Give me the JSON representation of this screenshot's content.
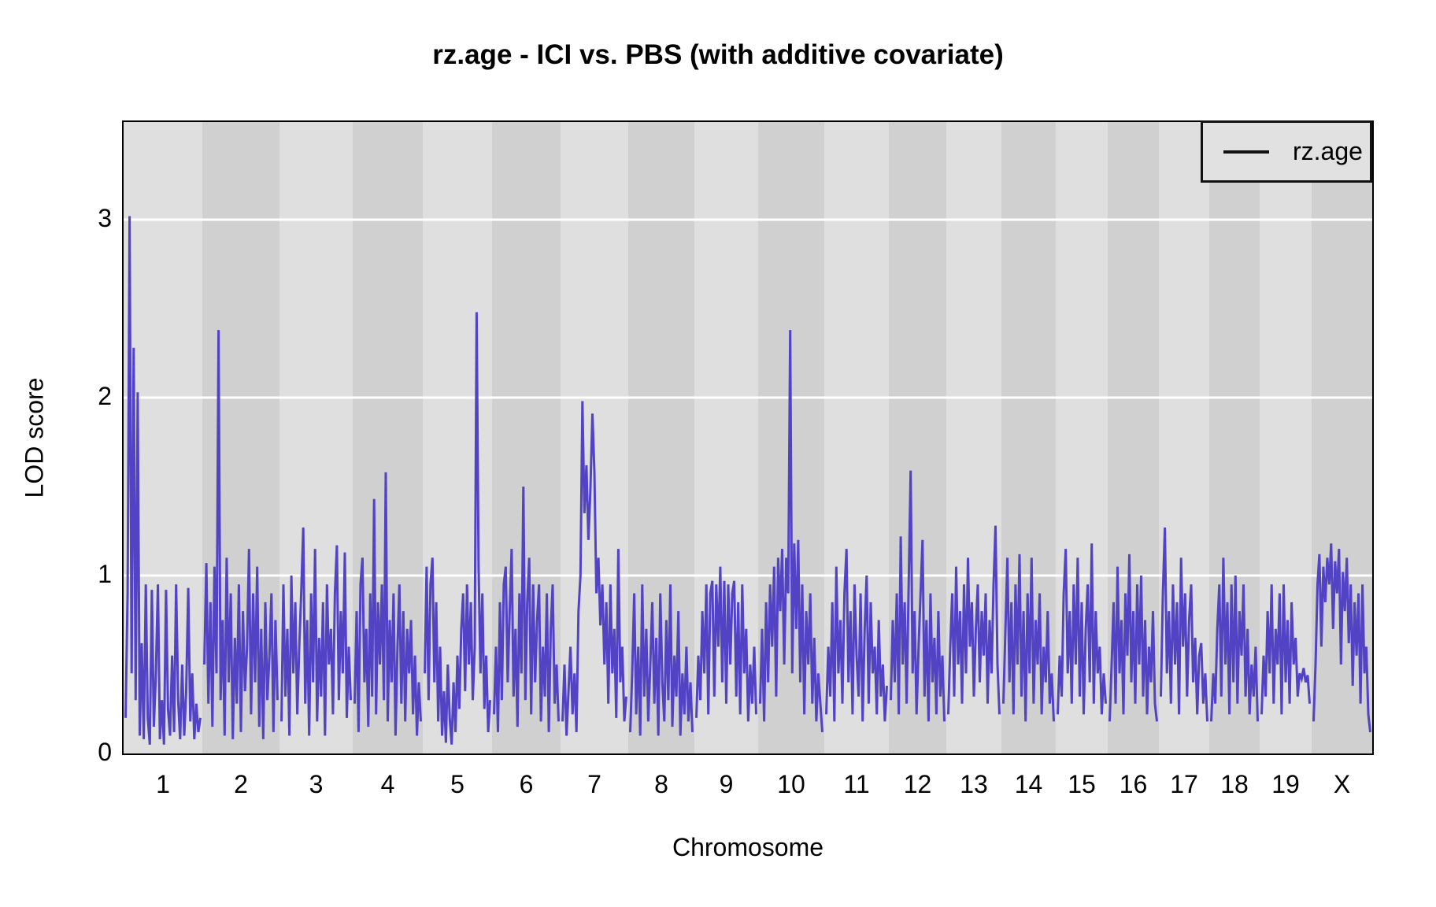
{
  "title": "rz.age - ICI vs. PBS (with additive covariate)",
  "y_axis": {
    "label": "LOD score",
    "ticks": [
      "0",
      "1",
      "2",
      "3"
    ]
  },
  "x_axis": {
    "label": "Chromosome"
  },
  "legend": {
    "label": "rz.age"
  },
  "colors": {
    "line": "#5242c4",
    "band_light": "#dfdfdf",
    "band_dark": "#d0d0d0",
    "gridline": "#ffffff",
    "border": "#000000",
    "legend_bg": "#e1e1e1"
  },
  "chart_data": {
    "type": "line",
    "title": "rz.age - ICI vs. PBS (with additive covariate)",
    "xlabel": "Chromosome",
    "ylabel": "LOD score",
    "ylim": [
      0,
      3.55
    ],
    "yticks": [
      0,
      1,
      2,
      3
    ],
    "grid": "horizontal-white-on-gray-bands",
    "legend_position": "top-right-inside",
    "series_name": "rz.age",
    "chromosomes": [
      {
        "name": "1",
        "rel_length": 100,
        "lod": [
          0.2,
          0.9,
          3.02,
          0.45,
          2.28,
          0.3,
          2.03,
          0.1,
          0.62,
          0.08,
          0.95,
          0.2,
          0.05,
          0.92,
          0.15,
          0.45,
          0.95,
          0.08,
          0.3,
          0.05,
          0.92,
          0.25,
          0.1,
          0.55,
          0.12,
          0.95,
          0.3,
          0.08,
          0.5,
          0.1,
          0.35,
          0.93,
          0.18,
          0.45,
          0.08,
          0.28,
          0.12,
          0.2
        ]
      },
      {
        "name": "2",
        "rel_length": 98,
        "lod": [
          0.5,
          1.07,
          0.28,
          0.85,
          0.15,
          1.05,
          0.45,
          2.38,
          0.3,
          0.75,
          0.1,
          1.1,
          0.4,
          0.9,
          0.08,
          0.65,
          0.28,
          0.95,
          0.12,
          0.8,
          0.35,
          0.6,
          1.15,
          0.22,
          0.9,
          0.4,
          1.05,
          0.15,
          0.7,
          0.08,
          0.85,
          0.3,
          0.55,
          0.9,
          0.12,
          0.75,
          0.3
        ]
      },
      {
        "name": "3",
        "rel_length": 93,
        "lod": [
          0.18,
          0.95,
          0.32,
          0.7,
          0.1,
          1.0,
          0.45,
          0.85,
          0.22,
          0.6,
          0.9,
          1.27,
          0.28,
          0.75,
          0.1,
          0.9,
          0.4,
          1.15,
          0.18,
          0.65,
          0.32,
          0.85,
          0.1,
          0.95,
          0.5,
          0.7,
          0.22,
          0.9,
          1.17,
          0.3,
          0.8,
          0.45,
          1.13,
          0.2,
          0.6,
          0.3
        ]
      },
      {
        "name": "4",
        "rel_length": 89,
        "lod": [
          0.28,
          0.8,
          0.12,
          0.95,
          1.1,
          0.4,
          0.7,
          0.15,
          0.9,
          0.32,
          1.43,
          0.22,
          0.85,
          0.5,
          0.95,
          0.3,
          1.58,
          0.18,
          0.75,
          0.4,
          0.9,
          0.1,
          0.6,
          0.95,
          0.28,
          0.8,
          0.18,
          0.7,
          0.45,
          0.75,
          0.22,
          0.55,
          0.1,
          0.4,
          0.18
        ]
      },
      {
        "name": "5",
        "rel_length": 88,
        "lod": [
          0.45,
          1.05,
          0.3,
          0.95,
          1.1,
          0.4,
          0.85,
          0.18,
          0.6,
          0.1,
          0.35,
          0.06,
          0.5,
          0.2,
          0.05,
          0.4,
          0.12,
          0.55,
          0.25,
          0.7,
          0.9,
          0.35,
          0.95,
          0.5,
          0.85,
          0.3,
          0.6,
          2.48,
          1.05,
          0.45,
          0.9,
          0.25,
          0.55,
          0.12,
          0.3
        ]
      },
      {
        "name": "6",
        "rel_length": 87,
        "lod": [
          0.22,
          0.6,
          0.12,
          0.85,
          0.3,
          0.95,
          1.05,
          0.4,
          0.8,
          1.15,
          0.32,
          0.7,
          0.15,
          0.9,
          0.45,
          1.5,
          0.3,
          0.85,
          1.1,
          0.22,
          0.95,
          0.4,
          0.75,
          0.95,
          0.18,
          0.6,
          0.32,
          0.9,
          0.12,
          0.7,
          0.95,
          0.28,
          0.5,
          0.18
        ]
      },
      {
        "name": "7",
        "rel_length": 86,
        "lod": [
          0.18,
          0.5,
          0.1,
          0.35,
          0.6,
          0.22,
          0.45,
          0.12,
          0.8,
          1.0,
          1.98,
          1.35,
          1.62,
          1.2,
          1.48,
          1.91,
          1.58,
          0.9,
          1.1,
          0.72,
          0.95,
          0.5,
          0.85,
          0.28,
          0.95,
          0.45,
          0.7,
          0.2,
          1.15,
          0.4,
          0.6,
          0.18,
          0.32
        ]
      },
      {
        "name": "8",
        "rel_length": 84,
        "lod": [
          0.12,
          0.45,
          0.9,
          0.22,
          0.6,
          0.1,
          0.95,
          0.32,
          0.7,
          0.18,
          0.5,
          0.85,
          0.28,
          0.65,
          0.1,
          0.9,
          0.4,
          0.18,
          0.75,
          0.3,
          0.95,
          0.15,
          0.55,
          0.32,
          0.8,
          0.1,
          0.45,
          0.22,
          0.6,
          0.18,
          0.4,
          0.12
        ]
      },
      {
        "name": "9",
        "rel_length": 81,
        "lod": [
          0.2,
          0.55,
          0.3,
          0.8,
          0.45,
          0.95,
          0.22,
          0.9,
          0.97,
          0.32,
          0.95,
          0.6,
          1.05,
          0.4,
          0.97,
          0.28,
          0.95,
          0.5,
          0.9,
          0.97,
          0.32,
          0.85,
          0.22,
          0.95,
          0.45,
          0.7,
          0.18,
          0.5,
          0.28,
          0.6,
          0.22
        ]
      },
      {
        "name": "10",
        "rel_length": 84,
        "lod": [
          0.28,
          0.7,
          0.18,
          0.85,
          0.4,
          0.95,
          0.6,
          1.05,
          0.32,
          1.1,
          0.8,
          1.15,
          0.5,
          1.1,
          0.9,
          2.38,
          0.45,
          1.18,
          0.7,
          1.2,
          0.4,
          0.95,
          0.22,
          0.8,
          0.5,
          0.9,
          0.28,
          0.65,
          0.18,
          0.45,
          0.28,
          0.12
        ]
      },
      {
        "name": "11",
        "rel_length": 82,
        "lod": [
          0.22,
          0.6,
          0.32,
          0.85,
          0.18,
          1.05,
          0.45,
          0.75,
          0.28,
          0.9,
          1.15,
          0.4,
          0.8,
          0.22,
          0.95,
          0.55,
          0.32,
          0.9,
          0.18,
          0.7,
          1.0,
          0.28,
          0.85,
          0.45,
          0.6,
          0.22,
          0.75,
          0.32,
          0.5,
          0.18,
          0.38
        ]
      },
      {
        "name": "12",
        "rel_length": 73,
        "lod": [
          0.3,
          0.75,
          0.4,
          0.9,
          0.22,
          1.22,
          0.5,
          0.85,
          0.28,
          0.95,
          1.59,
          0.45,
          0.8,
          0.22,
          0.6,
          0.9,
          1.2,
          0.32,
          0.75,
          0.18,
          0.9,
          0.4,
          0.65,
          0.22,
          0.8,
          0.32,
          0.55,
          0.18
        ]
      },
      {
        "name": "13",
        "rel_length": 70,
        "lod": [
          0.22,
          0.6,
          0.9,
          0.32,
          1.05,
          0.5,
          0.8,
          0.28,
          0.95,
          0.45,
          1.1,
          0.6,
          0.85,
          0.32,
          0.7,
          0.95,
          0.4,
          0.8,
          0.55,
          0.9,
          0.28,
          0.75,
          0.45,
          0.95,
          1.28,
          0.5,
          0.22
        ]
      },
      {
        "name": "14",
        "rel_length": 69,
        "lod": [
          0.28,
          0.7,
          1.1,
          0.4,
          0.85,
          0.22,
          0.95,
          0.5,
          1.12,
          0.32,
          0.8,
          0.18,
          0.9,
          0.45,
          1.1,
          0.28,
          0.75,
          0.5,
          0.9,
          0.22,
          0.6,
          0.4,
          0.8,
          0.28,
          0.45,
          0.18
        ]
      },
      {
        "name": "15",
        "rel_length": 66,
        "lod": [
          0.22,
          0.55,
          0.32,
          0.9,
          1.15,
          0.45,
          0.8,
          0.28,
          0.95,
          0.5,
          1.1,
          0.32,
          0.85,
          0.22,
          0.7,
          0.95,
          0.4,
          1.18,
          0.28,
          0.8,
          0.45,
          0.6,
          0.22,
          0.45,
          0.28
        ]
      },
      {
        "name": "16",
        "rel_length": 65,
        "lod": [
          0.18,
          0.5,
          0.85,
          0.28,
          1.05,
          0.45,
          0.75,
          0.22,
          0.9,
          0.55,
          1.12,
          0.4,
          0.8,
          0.28,
          0.95,
          0.5,
          1.0,
          0.32,
          0.75,
          0.22,
          0.6,
          0.4,
          0.8,
          0.28,
          0.18
        ]
      },
      {
        "name": "17",
        "rel_length": 64,
        "lod": [
          0.32,
          0.9,
          1.27,
          0.45,
          0.8,
          0.28,
          0.95,
          0.5,
          0.85,
          0.22,
          1.1,
          0.6,
          0.9,
          0.32,
          0.75,
          0.95,
          0.4,
          0.65,
          0.22,
          0.55,
          0.62,
          0.28,
          0.45,
          0.18
        ]
      },
      {
        "name": "18",
        "rel_length": 64,
        "lod": [
          0.18,
          0.45,
          0.28,
          0.7,
          0.95,
          0.32,
          1.1,
          0.5,
          0.85,
          0.22,
          0.95,
          0.4,
          1.0,
          0.28,
          0.8,
          0.55,
          0.95,
          0.32,
          0.7,
          0.22,
          0.5,
          0.32,
          0.6,
          0.18
        ]
      },
      {
        "name": "19",
        "rel_length": 66,
        "lod": [
          0.22,
          0.55,
          0.32,
          0.8,
          0.45,
          0.95,
          0.28,
          0.7,
          0.5,
          0.9,
          0.22,
          0.95,
          0.4,
          0.75,
          0.28,
          0.85,
          0.5,
          0.65,
          0.32,
          0.45,
          0.42,
          0.48,
          0.4,
          0.44,
          0.28
        ]
      },
      {
        "name": "X",
        "rel_length": 77,
        "lod": [
          0.18,
          0.5,
          0.95,
          1.12,
          0.6,
          1.05,
          0.85,
          1.1,
          0.95,
          1.18,
          0.7,
          1.08,
          0.9,
          1.15,
          0.5,
          1.02,
          0.8,
          1.1,
          0.62,
          0.95,
          0.38,
          0.85,
          0.55,
          0.9,
          0.28,
          0.95,
          0.45,
          0.6,
          0.22,
          0.12
        ]
      }
    ]
  }
}
